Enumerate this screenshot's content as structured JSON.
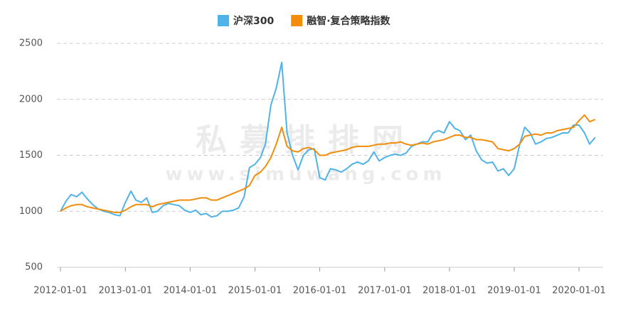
{
  "chart_data": {
    "type": "line",
    "watermark": [
      "私募排排网",
      "www.simuwang.com"
    ],
    "x": [
      "2012-01-01",
      "2012-02-01",
      "2012-03-01",
      "2012-04-01",
      "2012-05-01",
      "2012-06-01",
      "2012-07-01",
      "2012-08-01",
      "2012-09-01",
      "2012-10-01",
      "2012-11-01",
      "2012-12-01",
      "2013-01-01",
      "2013-02-01",
      "2013-03-01",
      "2013-04-01",
      "2013-05-01",
      "2013-06-01",
      "2013-07-01",
      "2013-08-01",
      "2013-09-01",
      "2013-10-01",
      "2013-11-01",
      "2013-12-01",
      "2014-01-01",
      "2014-02-01",
      "2014-03-01",
      "2014-04-01",
      "2014-05-01",
      "2014-06-01",
      "2014-07-01",
      "2014-08-01",
      "2014-09-01",
      "2014-10-01",
      "2014-11-01",
      "2014-12-01",
      "2015-01-01",
      "2015-02-01",
      "2015-03-01",
      "2015-04-01",
      "2015-05-01",
      "2015-06-01",
      "2015-07-01",
      "2015-08-01",
      "2015-09-01",
      "2015-10-01",
      "2015-11-01",
      "2015-12-01",
      "2016-01-01",
      "2016-02-01",
      "2016-03-01",
      "2016-04-01",
      "2016-05-01",
      "2016-06-01",
      "2016-07-01",
      "2016-08-01",
      "2016-09-01",
      "2016-10-01",
      "2016-11-01",
      "2016-12-01",
      "2017-01-01",
      "2017-02-01",
      "2017-03-01",
      "2017-04-01",
      "2017-05-01",
      "2017-06-01",
      "2017-07-01",
      "2017-08-01",
      "2017-09-01",
      "2017-10-01",
      "2017-11-01",
      "2017-12-01",
      "2018-01-01",
      "2018-02-01",
      "2018-03-01",
      "2018-04-01",
      "2018-05-01",
      "2018-06-01",
      "2018-07-01",
      "2018-08-01",
      "2018-09-01",
      "2018-10-01",
      "2018-11-01",
      "2018-12-01",
      "2019-01-01",
      "2019-02-01",
      "2019-03-01",
      "2019-04-01",
      "2019-05-01",
      "2019-06-01",
      "2019-07-01",
      "2019-08-01",
      "2019-09-01",
      "2019-10-01",
      "2019-11-01",
      "2019-12-01",
      "2020-01-01",
      "2020-02-01",
      "2020-03-01",
      "2020-04-01"
    ],
    "series": [
      {
        "name": "沪深300",
        "color": "#4fb3e8",
        "values": [
          1000,
          1090,
          1150,
          1130,
          1170,
          1110,
          1060,
          1020,
          1000,
          990,
          970,
          960,
          1080,
          1180,
          1100,
          1080,
          1120,
          990,
          1000,
          1050,
          1070,
          1060,
          1050,
          1010,
          990,
          1010,
          970,
          980,
          950,
          960,
          1000,
          1000,
          1010,
          1030,
          1130,
          1390,
          1420,
          1480,
          1600,
          1950,
          2100,
          2330,
          1700,
          1500,
          1370,
          1500,
          1550,
          1560,
          1300,
          1280,
          1380,
          1370,
          1350,
          1380,
          1420,
          1440,
          1420,
          1450,
          1530,
          1450,
          1480,
          1500,
          1510,
          1500,
          1520,
          1580,
          1600,
          1620,
          1620,
          1700,
          1720,
          1700,
          1800,
          1740,
          1720,
          1640,
          1680,
          1540,
          1460,
          1430,
          1440,
          1360,
          1380,
          1320,
          1380,
          1600,
          1750,
          1700,
          1600,
          1620,
          1650,
          1660,
          1680,
          1700,
          1700,
          1770,
          1770,
          1700,
          1600,
          1660
        ]
      },
      {
        "name": "融智·复合策略指数",
        "color": "#f28c0b",
        "values": [
          1000,
          1030,
          1050,
          1060,
          1060,
          1040,
          1030,
          1020,
          1010,
          1000,
          990,
          990,
          1010,
          1040,
          1060,
          1060,
          1060,
          1040,
          1060,
          1070,
          1080,
          1090,
          1100,
          1100,
          1100,
          1110,
          1120,
          1120,
          1100,
          1100,
          1120,
          1140,
          1160,
          1180,
          1200,
          1230,
          1320,
          1350,
          1400,
          1480,
          1600,
          1750,
          1580,
          1540,
          1530,
          1560,
          1570,
          1550,
          1500,
          1500,
          1520,
          1530,
          1540,
          1550,
          1570,
          1580,
          1580,
          1580,
          1590,
          1600,
          1600,
          1610,
          1610,
          1620,
          1600,
          1590,
          1600,
          1610,
          1600,
          1620,
          1630,
          1640,
          1660,
          1680,
          1680,
          1660,
          1660,
          1640,
          1640,
          1630,
          1620,
          1560,
          1550,
          1540,
          1560,
          1600,
          1670,
          1680,
          1690,
          1680,
          1700,
          1700,
          1720,
          1730,
          1740,
          1750,
          1810,
          1860,
          1800,
          1820
        ]
      }
    ],
    "xlim": [
      "2011-12-12",
      "2020-05-16"
    ],
    "xticks": [
      "2012-01-01",
      "2013-01-01",
      "2014-01-01",
      "2015-01-01",
      "2016-01-01",
      "2017-01-01",
      "2018-01-01",
      "2019-01-01",
      "2020-01-01"
    ],
    "ylim": [
      500,
      2500
    ],
    "yticks": [
      500,
      1000,
      1500,
      2000,
      2500
    ],
    "grid": true,
    "legend": "top"
  }
}
